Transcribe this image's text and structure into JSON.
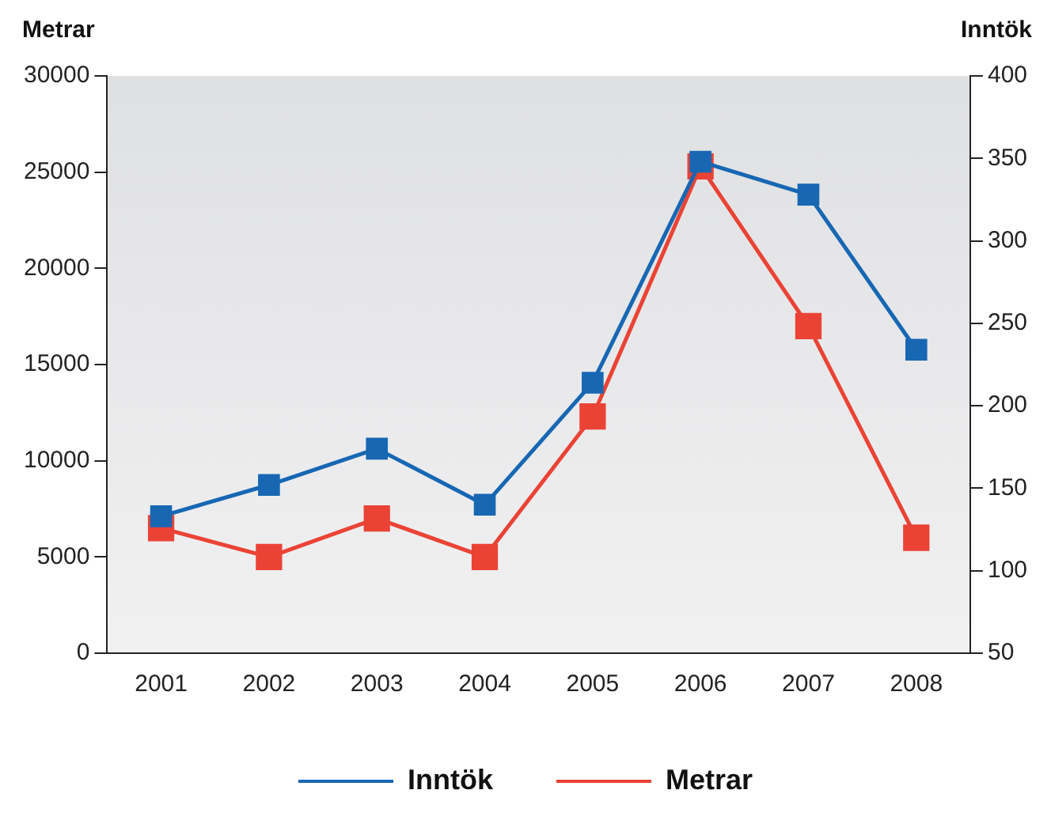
{
  "chart_data": {
    "type": "line",
    "ylabel": "Metrar",
    "y2label": "Inntök",
    "categories": [
      "2001",
      "2002",
      "2003",
      "2004",
      "2005",
      "2006",
      "2007",
      "2008"
    ],
    "series": [
      {
        "name": "Inntök",
        "color": "#1767b3",
        "axis": "y2",
        "values": [
          133,
          152,
          174,
          140,
          214,
          348,
          328,
          234
        ]
      },
      {
        "name": "Metrar",
        "color": "#ea4335",
        "values": [
          6500,
          5000,
          7000,
          5000,
          12300,
          25300,
          17000,
          6000
        ]
      }
    ],
    "ylim": [
      0,
      30000
    ],
    "yticks": [
      0,
      5000,
      10000,
      15000,
      20000,
      25000,
      30000
    ],
    "y2lim": [
      50,
      400
    ],
    "y2ticks": [
      50,
      100,
      150,
      200,
      250,
      300,
      350,
      400
    ],
    "legend": "bottom",
    "marker": "square"
  }
}
